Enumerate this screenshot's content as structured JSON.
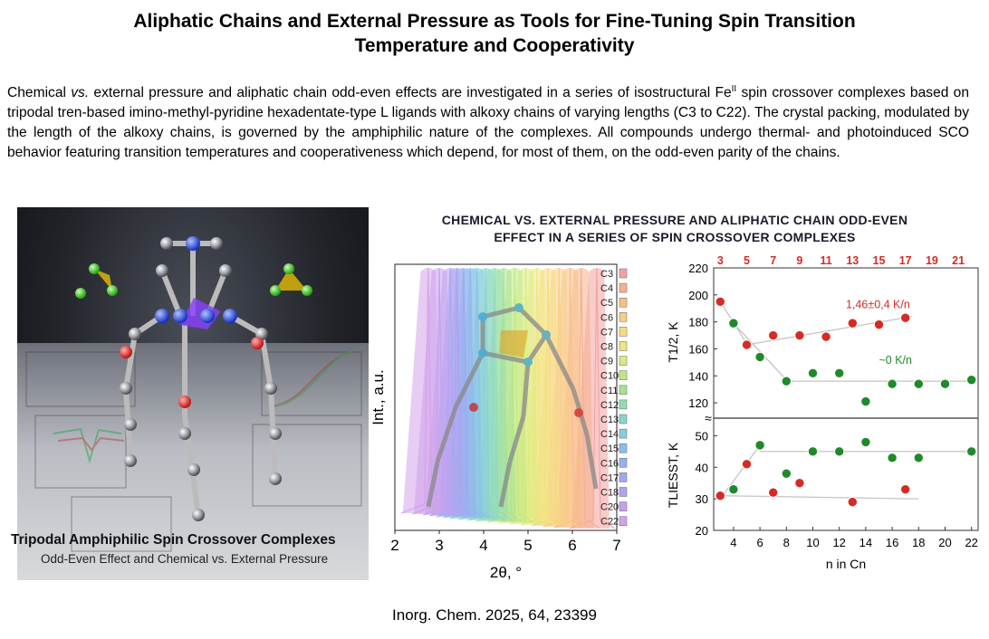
{
  "paper": {
    "title_line1": "Aliphatic Chains and External Pressure as Tools for Fine-Tuning Spin Transition",
    "title_line2": "Temperature and Cooperativity",
    "abstract_part1": "Chemical ",
    "abstract_vs": "vs.",
    "abstract_part2": " external pressure and aliphatic chain odd-even effects are investigated in a series of isostructural Fe",
    "abstract_sup": "II",
    "abstract_part3": " spin crossover complexes based on tripodal tren-based imino-methyl-pyridine hexadentate-type L ligands with alkoxy chains of varying lengths (C3 to C22). The crystal packing, modulated by the length of the alkoxy chains, is governed by the amphiphilic nature of the complexes. All compounds undergo thermal- and photoinduced SCO behavior featuring transition temperatures and cooperativeness which depend, for most of them, on the odd-even parity of the chains.",
    "citation": "Inorg. Chem. 2025, 64, 23399"
  },
  "cover": {
    "title": "Tripodal Amphiphilic Spin Crossover Complexes",
    "subtitle": "Odd-Even Effect and Chemical vs. External Pressure"
  },
  "figure": {
    "title_line1": "CHEMICAL VS. EXTERNAL PRESSURE AND ALIPHATIC CHAIN ODD-EVEN",
    "title_line2": "EFFECT IN A SERIES OF SPIN CROSSOVER COMPLEXES"
  },
  "colors": {
    "red": "#d62b24",
    "green": "#1e8a2a",
    "fit_gray": "#c8c8c8"
  },
  "chart_data": [
    {
      "type": "line",
      "name": "pxrd",
      "xlabel": "2θ, °",
      "ylabel": "Int., a.u.",
      "xlim": [
        2,
        7
      ],
      "xticks": [
        2,
        3,
        4,
        5,
        6,
        7
      ],
      "series": [
        {
          "name": "C3",
          "peak": 6.55,
          "color": "#f4a0a0"
        },
        {
          "name": "C4",
          "peak": 6.2,
          "color": "#f6b08a"
        },
        {
          "name": "C5",
          "peak": 5.95,
          "color": "#f8bf86"
        },
        {
          "name": "C6",
          "peak": 5.7,
          "color": "#f9cd84"
        },
        {
          "name": "C7",
          "peak": 5.45,
          "color": "#f6dc80"
        },
        {
          "name": "C8",
          "peak": 5.2,
          "color": "#eee67e"
        },
        {
          "name": "C9",
          "peak": 4.95,
          "color": "#d9ec7e"
        },
        {
          "name": "C10",
          "peak": 4.7,
          "color": "#bfe884"
        },
        {
          "name": "C11",
          "peak": 4.45,
          "color": "#a6e291"
        },
        {
          "name": "C12",
          "peak": 4.25,
          "color": "#93dcb0"
        },
        {
          "name": "C13",
          "peak": 4.05,
          "color": "#8ad6cc"
        },
        {
          "name": "C14",
          "peak": 3.85,
          "color": "#88cce0"
        },
        {
          "name": "C15",
          "peak": 3.7,
          "color": "#8cbfe8"
        },
        {
          "name": "C16",
          "peak": 3.55,
          "color": "#94b2ee"
        },
        {
          "name": "C17",
          "peak": 3.4,
          "color": "#a0a8f0"
        },
        {
          "name": "C18",
          "peak": 3.25,
          "color": "#b2a2f0"
        },
        {
          "name": "C20",
          "peak": 3.0,
          "color": "#c4a0ee"
        },
        {
          "name": "C22",
          "peak": 2.75,
          "color": "#d4a2ea"
        }
      ]
    },
    {
      "type": "scatter",
      "name": "t-half",
      "ylabel": "T1/2, K",
      "ylim": [
        110,
        220
      ],
      "yticks": [
        120,
        140,
        160,
        180,
        200,
        220
      ],
      "xlim": [
        2.5,
        22.5
      ],
      "top_ticks": [
        3,
        5,
        7,
        9,
        11,
        13,
        15,
        17,
        19,
        21
      ],
      "annotations": [
        "1,46±0,4 K/n",
        "~0 K/n"
      ],
      "series": [
        {
          "name": "odd",
          "color": "red",
          "points": [
            [
              3,
              195
            ],
            [
              5,
              163
            ],
            [
              7,
              170
            ],
            [
              9,
              170
            ],
            [
              11,
              169
            ],
            [
              13,
              179
            ],
            [
              15,
              178
            ],
            [
              17,
              183
            ]
          ]
        },
        {
          "name": "even",
          "color": "green",
          "points": [
            [
              4,
              179
            ],
            [
              6,
              154
            ],
            [
              8,
              136
            ],
            [
              10,
              142
            ],
            [
              12,
              142
            ],
            [
              14,
              121
            ],
            [
              16,
              134
            ],
            [
              18,
              134
            ],
            [
              20,
              134
            ],
            [
              22,
              137
            ]
          ]
        }
      ]
    },
    {
      "type": "scatter",
      "name": "t-liesst",
      "ylabel": "TLIESST, K",
      "ylim": [
        20,
        55
      ],
      "yticks": [
        20,
        30,
        40,
        50
      ],
      "xlim": [
        2.5,
        22.5
      ],
      "xticks": [
        4,
        6,
        8,
        10,
        12,
        14,
        16,
        18,
        20,
        22
      ],
      "xlabel": "n in Cn",
      "series": [
        {
          "name": "odd",
          "color": "red",
          "points": [
            [
              3,
              31
            ],
            [
              5,
              41
            ],
            [
              7,
              32
            ],
            [
              9,
              35
            ],
            [
              13,
              29
            ],
            [
              17,
              33
            ]
          ]
        },
        {
          "name": "even",
          "color": "green",
          "points": [
            [
              4,
              33
            ],
            [
              6,
              47
            ],
            [
              8,
              38
            ],
            [
              10,
              45
            ],
            [
              12,
              45
            ],
            [
              14,
              48
            ],
            [
              16,
              43
            ],
            [
              18,
              43
            ],
            [
              22,
              45
            ]
          ]
        }
      ]
    }
  ]
}
